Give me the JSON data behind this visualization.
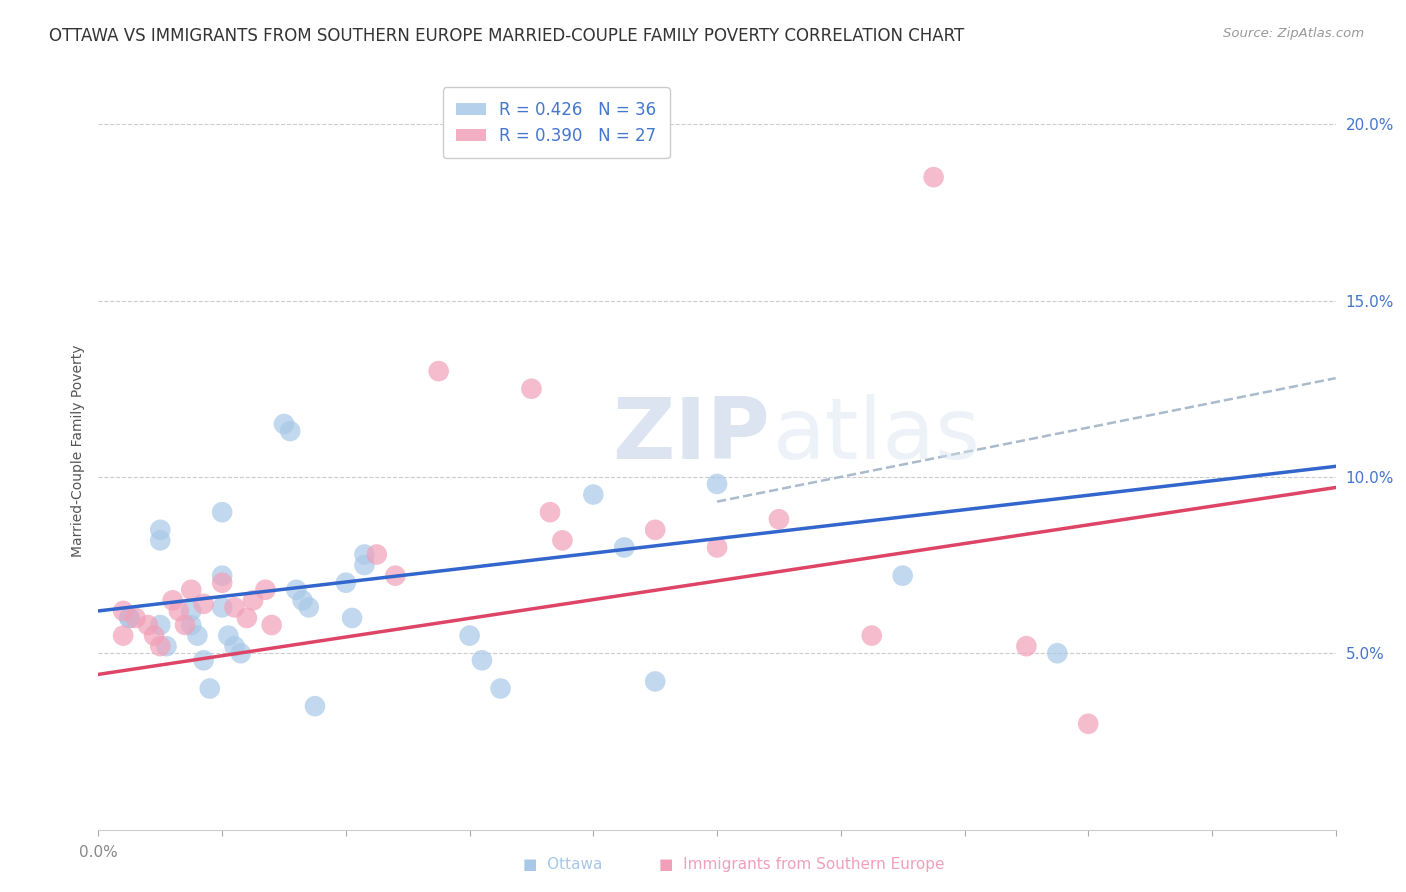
{
  "title": "OTTAWA VS IMMIGRANTS FROM SOUTHERN EUROPE MARRIED-COUPLE FAMILY POVERTY CORRELATION CHART",
  "source": "Source: ZipAtlas.com",
  "ylabel": "Married-Couple Family Poverty",
  "xlim": [
    0.0,
    0.2
  ],
  "ylim": [
    0.0,
    0.215
  ],
  "yticks": [
    0.05,
    0.1,
    0.15,
    0.2
  ],
  "ytick_labels": [
    "5.0%",
    "10.0%",
    "15.0%",
    "20.0%"
  ],
  "watermark_zip": "ZIP",
  "watermark_atlas": "atlas",
  "ottawa_color": "#a8c8e8",
  "immigrants_color": "#f0a0b8",
  "ottawa_line_color": "#3366cc",
  "immigrants_line_color": "#dd4466",
  "dashed_line_color": "#aabbcc",
  "background_color": "#ffffff",
  "grid_color": "#cccccc",
  "title_fontsize": 12,
  "axis_label_fontsize": 10,
  "tick_fontsize": 11,
  "legend_fontsize": 12,
  "ottawa_points": [
    [
      0.005,
      0.06
    ],
    [
      0.005,
      0.06
    ],
    [
      0.01,
      0.085
    ],
    [
      0.01,
      0.082
    ],
    [
      0.01,
      0.058
    ],
    [
      0.011,
      0.052
    ],
    [
      0.015,
      0.062
    ],
    [
      0.015,
      0.058
    ],
    [
      0.016,
      0.055
    ],
    [
      0.017,
      0.048
    ],
    [
      0.018,
      0.04
    ],
    [
      0.02,
      0.09
    ],
    [
      0.02,
      0.072
    ],
    [
      0.02,
      0.063
    ],
    [
      0.021,
      0.055
    ],
    [
      0.022,
      0.052
    ],
    [
      0.023,
      0.05
    ],
    [
      0.03,
      0.115
    ],
    [
      0.031,
      0.113
    ],
    [
      0.032,
      0.068
    ],
    [
      0.033,
      0.065
    ],
    [
      0.034,
      0.063
    ],
    [
      0.035,
      0.035
    ],
    [
      0.04,
      0.07
    ],
    [
      0.041,
      0.06
    ],
    [
      0.043,
      0.075
    ],
    [
      0.043,
      0.078
    ],
    [
      0.06,
      0.055
    ],
    [
      0.062,
      0.048
    ],
    [
      0.065,
      0.04
    ],
    [
      0.08,
      0.095
    ],
    [
      0.085,
      0.08
    ],
    [
      0.09,
      0.042
    ],
    [
      0.1,
      0.098
    ],
    [
      0.13,
      0.072
    ],
    [
      0.155,
      0.05
    ]
  ],
  "immigrants_points": [
    [
      0.004,
      0.062
    ],
    [
      0.004,
      0.055
    ],
    [
      0.006,
      0.06
    ],
    [
      0.008,
      0.058
    ],
    [
      0.009,
      0.055
    ],
    [
      0.01,
      0.052
    ],
    [
      0.012,
      0.065
    ],
    [
      0.013,
      0.062
    ],
    [
      0.014,
      0.058
    ],
    [
      0.015,
      0.068
    ],
    [
      0.017,
      0.064
    ],
    [
      0.02,
      0.07
    ],
    [
      0.022,
      0.063
    ],
    [
      0.024,
      0.06
    ],
    [
      0.025,
      0.065
    ],
    [
      0.027,
      0.068
    ],
    [
      0.028,
      0.058
    ],
    [
      0.045,
      0.078
    ],
    [
      0.048,
      0.072
    ],
    [
      0.055,
      0.13
    ],
    [
      0.07,
      0.125
    ],
    [
      0.073,
      0.09
    ],
    [
      0.075,
      0.082
    ],
    [
      0.09,
      0.085
    ],
    [
      0.1,
      0.08
    ],
    [
      0.11,
      0.088
    ],
    [
      0.125,
      0.055
    ],
    [
      0.135,
      0.185
    ],
    [
      0.15,
      0.052
    ],
    [
      0.16,
      0.03
    ]
  ]
}
